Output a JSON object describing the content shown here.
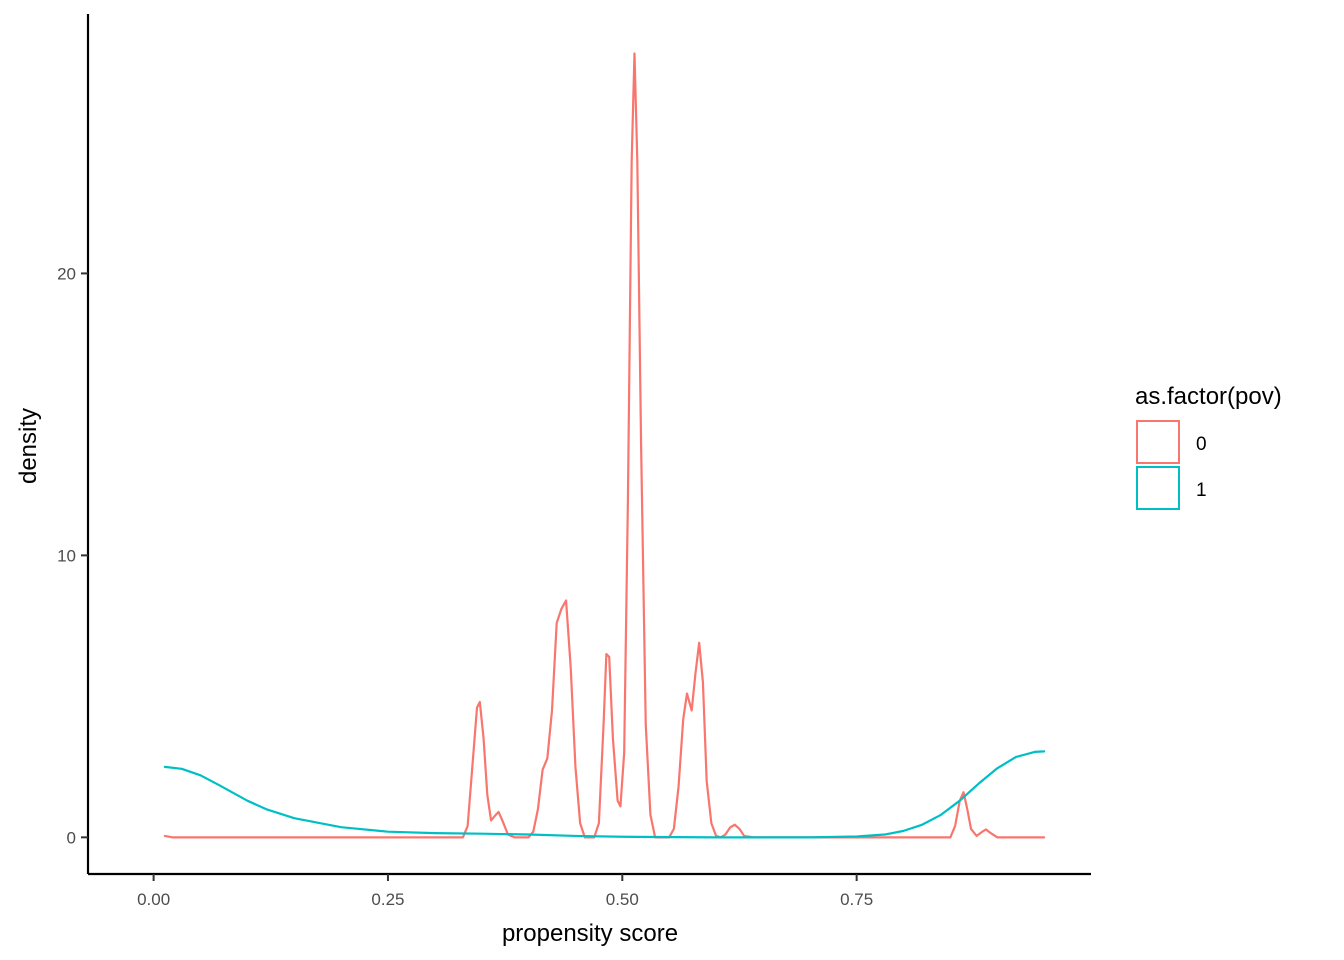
{
  "chart_data": {
    "type": "line",
    "title": "",
    "xlabel": "propensity score",
    "ylabel": "density",
    "xlim": [
      -0.07,
      1.0
    ],
    "ylim": [
      -1.3,
      29.2
    ],
    "x_ticks": [
      0,
      0.25,
      0.5,
      0.75
    ],
    "x_tick_labels": [
      "0.00",
      "0.25",
      "0.50",
      "0.75"
    ],
    "y_ticks": [
      0,
      10,
      20
    ],
    "y_tick_labels": [
      "0",
      "10",
      "20"
    ],
    "grid": false,
    "legend": {
      "title": "as.factor(pov)",
      "position": "right"
    },
    "series": [
      {
        "name": "0",
        "color": "#F8766D",
        "points": [
          [
            0.012,
            0.05
          ],
          [
            0.02,
            0.0
          ],
          [
            0.05,
            0.0
          ],
          [
            0.1,
            0.0
          ],
          [
            0.2,
            0.0
          ],
          [
            0.3,
            0.0
          ],
          [
            0.33,
            0.0
          ],
          [
            0.335,
            0.4
          ],
          [
            0.34,
            2.5
          ],
          [
            0.345,
            4.6
          ],
          [
            0.348,
            4.8
          ],
          [
            0.352,
            3.5
          ],
          [
            0.356,
            1.5
          ],
          [
            0.36,
            0.6
          ],
          [
            0.365,
            0.8
          ],
          [
            0.368,
            0.9
          ],
          [
            0.372,
            0.6
          ],
          [
            0.378,
            0.1
          ],
          [
            0.385,
            0.0
          ],
          [
            0.4,
            0.0
          ],
          [
            0.405,
            0.2
          ],
          [
            0.41,
            1.0
          ],
          [
            0.415,
            2.4
          ],
          [
            0.42,
            2.8
          ],
          [
            0.425,
            4.5
          ],
          [
            0.43,
            7.6
          ],
          [
            0.435,
            8.1
          ],
          [
            0.44,
            8.4
          ],
          [
            0.445,
            6.0
          ],
          [
            0.45,
            2.5
          ],
          [
            0.455,
            0.5
          ],
          [
            0.46,
            0.0
          ],
          [
            0.47,
            0.0
          ],
          [
            0.475,
            0.5
          ],
          [
            0.48,
            4.0
          ],
          [
            0.483,
            6.5
          ],
          [
            0.486,
            6.4
          ],
          [
            0.49,
            3.5
          ],
          [
            0.495,
            1.3
          ],
          [
            0.498,
            1.1
          ],
          [
            0.502,
            3.0
          ],
          [
            0.506,
            12.0
          ],
          [
            0.51,
            24.0
          ],
          [
            0.513,
            27.8
          ],
          [
            0.516,
            24.0
          ],
          [
            0.52,
            14.0
          ],
          [
            0.525,
            4.0
          ],
          [
            0.53,
            0.8
          ],
          [
            0.535,
            0.0
          ],
          [
            0.55,
            0.0
          ],
          [
            0.555,
            0.3
          ],
          [
            0.56,
            1.8
          ],
          [
            0.565,
            4.2
          ],
          [
            0.569,
            5.1
          ],
          [
            0.574,
            4.5
          ],
          [
            0.578,
            5.8
          ],
          [
            0.582,
            6.9
          ],
          [
            0.586,
            5.5
          ],
          [
            0.59,
            2.0
          ],
          [
            0.595,
            0.5
          ],
          [
            0.6,
            0.05
          ],
          [
            0.605,
            0.0
          ],
          [
            0.61,
            0.1
          ],
          [
            0.615,
            0.35
          ],
          [
            0.62,
            0.45
          ],
          [
            0.625,
            0.3
          ],
          [
            0.63,
            0.05
          ],
          [
            0.64,
            0.0
          ],
          [
            0.7,
            0.0
          ],
          [
            0.8,
            0.0
          ],
          [
            0.85,
            0.0
          ],
          [
            0.855,
            0.4
          ],
          [
            0.86,
            1.3
          ],
          [
            0.864,
            1.6
          ],
          [
            0.868,
            1.0
          ],
          [
            0.872,
            0.3
          ],
          [
            0.878,
            0.05
          ],
          [
            0.884,
            0.2
          ],
          [
            0.888,
            0.28
          ],
          [
            0.893,
            0.15
          ],
          [
            0.9,
            0.0
          ],
          [
            0.95,
            0.0
          ]
        ]
      },
      {
        "name": "1",
        "color": "#00BFC4",
        "points": [
          [
            0.012,
            2.5
          ],
          [
            0.03,
            2.43
          ],
          [
            0.05,
            2.2
          ],
          [
            0.07,
            1.85
          ],
          [
            0.1,
            1.3
          ],
          [
            0.12,
            1.0
          ],
          [
            0.15,
            0.68
          ],
          [
            0.2,
            0.36
          ],
          [
            0.25,
            0.2
          ],
          [
            0.3,
            0.15
          ],
          [
            0.35,
            0.13
          ],
          [
            0.4,
            0.1
          ],
          [
            0.45,
            0.05
          ],
          [
            0.5,
            0.02
          ],
          [
            0.6,
            0.0
          ],
          [
            0.7,
            0.0
          ],
          [
            0.75,
            0.03
          ],
          [
            0.78,
            0.1
          ],
          [
            0.8,
            0.23
          ],
          [
            0.82,
            0.45
          ],
          [
            0.84,
            0.8
          ],
          [
            0.86,
            1.3
          ],
          [
            0.88,
            1.9
          ],
          [
            0.9,
            2.45
          ],
          [
            0.92,
            2.85
          ],
          [
            0.94,
            3.03
          ],
          [
            0.95,
            3.05
          ]
        ]
      }
    ]
  }
}
